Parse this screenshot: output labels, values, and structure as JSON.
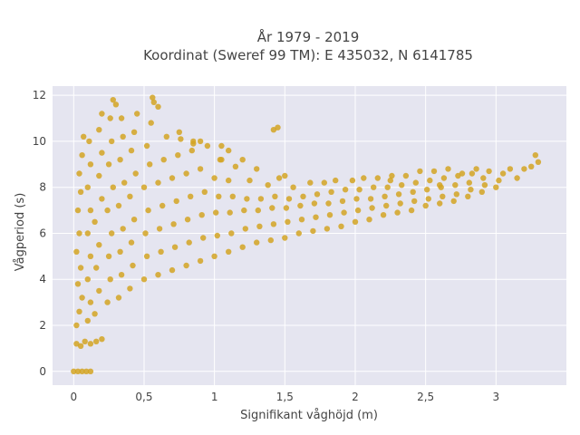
{
  "chart_data": {
    "type": "scatter",
    "title": "År 1979 - 2019",
    "subtitle": "Koordinat (Sweref 99 TM): E 435032, N 6141785",
    "xlabel": "Signifikant våghöjd (m)",
    "ylabel": "Vågperiod (s)",
    "xlim": [
      -0.15,
      3.5
    ],
    "ylim": [
      -0.6,
      12.4
    ],
    "xticks": [
      0,
      0.5,
      1,
      1.5,
      2,
      2.5,
      3
    ],
    "xtick_labels": [
      "0",
      "0,5",
      "1",
      "1,5",
      "2",
      "2,5",
      "3"
    ],
    "yticks": [
      0,
      2,
      4,
      6,
      8,
      10,
      12
    ],
    "ytick_labels": [
      "0",
      "2",
      "4",
      "6",
      "8",
      "10",
      "12"
    ],
    "grid": true,
    "legend": "none",
    "colors": {
      "marker": "#d4a423",
      "plot_bg": "#e5e5f0",
      "grid": "#ffffff",
      "text": "#444444"
    },
    "series": [
      {
        "values_note_free": true,
        "points": [
          [
            0.0,
            0
          ],
          [
            0.03,
            0
          ],
          [
            0.06,
            0
          ],
          [
            0.09,
            0
          ],
          [
            0.12,
            0
          ],
          [
            0.02,
            1.2
          ],
          [
            0.05,
            1.1
          ],
          [
            0.08,
            1.3
          ],
          [
            0.12,
            1.2
          ],
          [
            0.16,
            1.3
          ],
          [
            0.2,
            1.4
          ],
          [
            0.02,
            2.0
          ],
          [
            0.04,
            2.6
          ],
          [
            0.06,
            3.2
          ],
          [
            0.03,
            3.8
          ],
          [
            0.05,
            4.5
          ],
          [
            0.02,
            5.2
          ],
          [
            0.04,
            6.0
          ],
          [
            0.03,
            7.0
          ],
          [
            0.05,
            7.8
          ],
          [
            0.04,
            8.6
          ],
          [
            0.06,
            9.4
          ],
          [
            0.07,
            10.2
          ],
          [
            0.1,
            2.2
          ],
          [
            0.12,
            3.0
          ],
          [
            0.1,
            4.0
          ],
          [
            0.12,
            5.0
          ],
          [
            0.1,
            6.0
          ],
          [
            0.12,
            7.0
          ],
          [
            0.1,
            8.0
          ],
          [
            0.12,
            9.0
          ],
          [
            0.11,
            10.0
          ],
          [
            0.15,
            2.5
          ],
          [
            0.18,
            3.5
          ],
          [
            0.16,
            4.5
          ],
          [
            0.18,
            5.5
          ],
          [
            0.15,
            6.5
          ],
          [
            0.2,
            7.5
          ],
          [
            0.18,
            8.5
          ],
          [
            0.2,
            9.5
          ],
          [
            0.18,
            10.5
          ],
          [
            0.2,
            11.2
          ],
          [
            0.24,
            3.0
          ],
          [
            0.26,
            4.0
          ],
          [
            0.25,
            5.0
          ],
          [
            0.27,
            6.0
          ],
          [
            0.24,
            7.0
          ],
          [
            0.28,
            8.0
          ],
          [
            0.25,
            9.0
          ],
          [
            0.27,
            10.0
          ],
          [
            0.26,
            11.0
          ],
          [
            0.28,
            11.8
          ],
          [
            0.32,
            3.2
          ],
          [
            0.34,
            4.2
          ],
          [
            0.33,
            5.2
          ],
          [
            0.35,
            6.2
          ],
          [
            0.32,
            7.2
          ],
          [
            0.36,
            8.2
          ],
          [
            0.33,
            9.2
          ],
          [
            0.35,
            10.2
          ],
          [
            0.34,
            11.0
          ],
          [
            0.3,
            11.6
          ],
          [
            0.4,
            3.6
          ],
          [
            0.42,
            4.6
          ],
          [
            0.41,
            5.6
          ],
          [
            0.43,
            6.6
          ],
          [
            0.4,
            7.6
          ],
          [
            0.44,
            8.6
          ],
          [
            0.41,
            9.6
          ],
          [
            0.43,
            10.4
          ],
          [
            0.45,
            11.2
          ],
          [
            0.5,
            4.0
          ],
          [
            0.52,
            5.0
          ],
          [
            0.51,
            6.0
          ],
          [
            0.53,
            7.0
          ],
          [
            0.5,
            8.0
          ],
          [
            0.54,
            9.0
          ],
          [
            0.52,
            9.8
          ],
          [
            0.55,
            10.8
          ],
          [
            0.57,
            11.7
          ],
          [
            0.6,
            4.2
          ],
          [
            0.62,
            5.2
          ],
          [
            0.61,
            6.2
          ],
          [
            0.63,
            7.2
          ],
          [
            0.6,
            8.2
          ],
          [
            0.64,
            9.2
          ],
          [
            0.66,
            10.2
          ],
          [
            0.7,
            4.4
          ],
          [
            0.72,
            5.4
          ],
          [
            0.71,
            6.4
          ],
          [
            0.73,
            7.4
          ],
          [
            0.7,
            8.4
          ],
          [
            0.74,
            9.4
          ],
          [
            0.76,
            10.1
          ],
          [
            0.8,
            4.6
          ],
          [
            0.82,
            5.6
          ],
          [
            0.81,
            6.6
          ],
          [
            0.83,
            7.6
          ],
          [
            0.8,
            8.6
          ],
          [
            0.84,
            9.6
          ],
          [
            0.85,
            10.0
          ],
          [
            0.9,
            4.8
          ],
          [
            0.92,
            5.8
          ],
          [
            0.91,
            6.8
          ],
          [
            0.93,
            7.8
          ],
          [
            0.9,
            8.8
          ],
          [
            0.95,
            9.8
          ],
          [
            1.0,
            5.0
          ],
          [
            1.02,
            5.9
          ],
          [
            1.01,
            6.9
          ],
          [
            1.03,
            7.6
          ],
          [
            1.0,
            8.4
          ],
          [
            1.04,
            9.2
          ],
          [
            1.05,
            9.8
          ],
          [
            1.1,
            5.2
          ],
          [
            1.12,
            6.0
          ],
          [
            1.11,
            6.9
          ],
          [
            1.13,
            7.6
          ],
          [
            1.1,
            8.3
          ],
          [
            1.15,
            8.9
          ],
          [
            1.2,
            5.4
          ],
          [
            1.22,
            6.2
          ],
          [
            1.21,
            7.0
          ],
          [
            1.23,
            7.5
          ],
          [
            1.25,
            8.3
          ],
          [
            1.3,
            8.8
          ],
          [
            1.3,
            5.6
          ],
          [
            1.32,
            6.3
          ],
          [
            1.31,
            7.0
          ],
          [
            1.33,
            7.5
          ],
          [
            1.38,
            8.1
          ],
          [
            1.42,
            10.5
          ],
          [
            1.4,
            5.7
          ],
          [
            1.42,
            6.4
          ],
          [
            1.41,
            7.1
          ],
          [
            1.43,
            7.6
          ],
          [
            1.46,
            8.4
          ],
          [
            1.5,
            5.8
          ],
          [
            1.52,
            6.5
          ],
          [
            1.51,
            7.1
          ],
          [
            1.53,
            7.5
          ],
          [
            1.56,
            8.0
          ],
          [
            1.6,
            6.0
          ],
          [
            1.62,
            6.6
          ],
          [
            1.61,
            7.2
          ],
          [
            1.63,
            7.6
          ],
          [
            1.68,
            8.2
          ],
          [
            1.7,
            6.1
          ],
          [
            1.72,
            6.7
          ],
          [
            1.71,
            7.3
          ],
          [
            1.73,
            7.7
          ],
          [
            1.78,
            8.2
          ],
          [
            1.8,
            6.2
          ],
          [
            1.82,
            6.8
          ],
          [
            1.81,
            7.3
          ],
          [
            1.83,
            7.8
          ],
          [
            1.86,
            8.3
          ],
          [
            1.9,
            6.3
          ],
          [
            1.92,
            6.9
          ],
          [
            1.91,
            7.4
          ],
          [
            1.93,
            7.9
          ],
          [
            1.98,
            8.3
          ],
          [
            2.0,
            6.5
          ],
          [
            2.02,
            7.0
          ],
          [
            2.01,
            7.5
          ],
          [
            2.03,
            7.9
          ],
          [
            2.06,
            8.4
          ],
          [
            2.1,
            6.6
          ],
          [
            2.12,
            7.1
          ],
          [
            2.11,
            7.5
          ],
          [
            2.13,
            8.0
          ],
          [
            2.16,
            8.4
          ],
          [
            2.2,
            6.8
          ],
          [
            2.22,
            7.2
          ],
          [
            2.21,
            7.6
          ],
          [
            2.23,
            8.0
          ],
          [
            2.26,
            8.5
          ],
          [
            2.3,
            6.9
          ],
          [
            2.32,
            7.3
          ],
          [
            2.31,
            7.7
          ],
          [
            2.33,
            8.1
          ],
          [
            2.36,
            8.5
          ],
          [
            2.4,
            7.0
          ],
          [
            2.42,
            7.4
          ],
          [
            2.41,
            7.8
          ],
          [
            2.43,
            8.2
          ],
          [
            2.46,
            8.7
          ],
          [
            2.5,
            7.2
          ],
          [
            2.52,
            7.5
          ],
          [
            2.51,
            7.9
          ],
          [
            2.53,
            8.3
          ],
          [
            2.56,
            8.7
          ],
          [
            2.6,
            7.3
          ],
          [
            2.62,
            7.6
          ],
          [
            2.61,
            8.0
          ],
          [
            2.63,
            8.4
          ],
          [
            2.66,
            8.8
          ],
          [
            2.7,
            7.4
          ],
          [
            2.72,
            7.7
          ],
          [
            2.71,
            8.1
          ],
          [
            2.73,
            8.5
          ],
          [
            2.76,
            8.6
          ],
          [
            2.8,
            7.6
          ],
          [
            2.82,
            7.9
          ],
          [
            2.81,
            8.2
          ],
          [
            2.83,
            8.6
          ],
          [
            2.86,
            8.8
          ],
          [
            2.9,
            7.8
          ],
          [
            2.92,
            8.1
          ],
          [
            2.91,
            8.4
          ],
          [
            2.95,
            8.7
          ],
          [
            3.0,
            8.0
          ],
          [
            3.02,
            8.3
          ],
          [
            3.05,
            8.6
          ],
          [
            3.1,
            8.8
          ],
          [
            3.15,
            8.4
          ],
          [
            3.2,
            8.8
          ],
          [
            3.25,
            8.9
          ],
          [
            3.3,
            9.1
          ],
          [
            3.28,
            9.4
          ],
          [
            0.56,
            11.9
          ],
          [
            0.6,
            11.5
          ],
          [
            0.75,
            10.4
          ],
          [
            0.9,
            10.0
          ],
          [
            1.1,
            9.6
          ],
          [
            1.2,
            9.2
          ],
          [
            1.5,
            8.5
          ],
          [
            2.6,
            8.1
          ],
          [
            2.25,
            8.3
          ],
          [
            1.45,
            10.6
          ],
          [
            0.85,
            9.9
          ],
          [
            1.05,
            9.2
          ]
        ]
      }
    ]
  }
}
